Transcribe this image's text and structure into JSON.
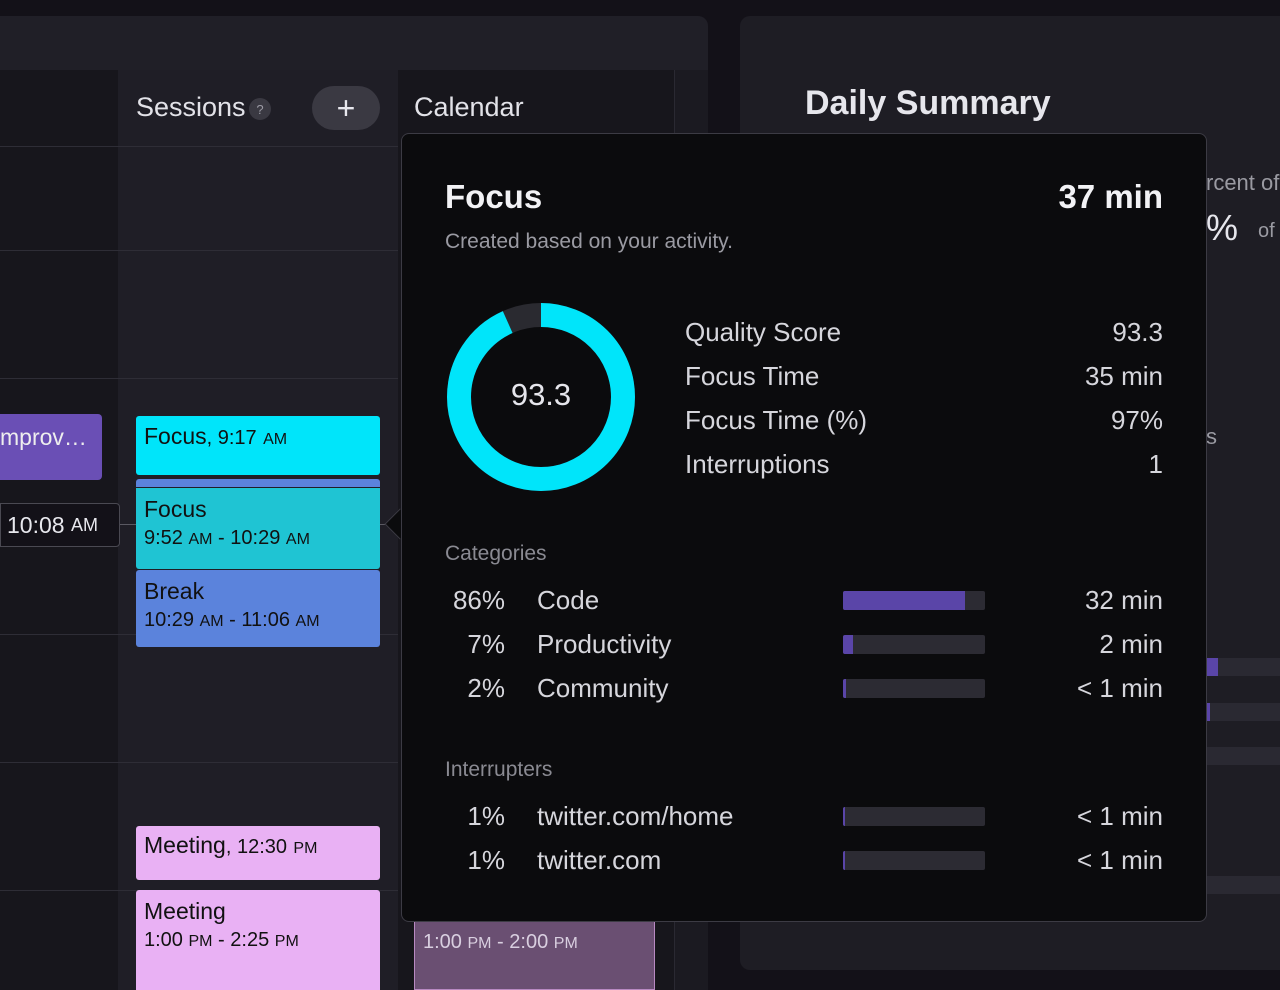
{
  "sessions_column": {
    "title": "Sessions",
    "help": "?",
    "add": "+"
  },
  "calendar_column": {
    "title": "Calendar"
  },
  "left_column": {
    "event_label": "mprov…",
    "current_time": "10:08",
    "current_time_period": "AM"
  },
  "session_blocks": [
    {
      "name": "Focus",
      "time": ", 9:17",
      "period": "AM",
      "color": "#00e5fa"
    },
    {
      "name": "Focus",
      "start": "9:52",
      "start_period": "AM",
      "end": "10:29",
      "end_period": "AM",
      "color": "#1fc4d3"
    },
    {
      "name": "Break",
      "start": "10:29",
      "start_period": "AM",
      "end": "11:06",
      "end_period": "AM",
      "color": "#5b83dc"
    },
    {
      "name": "Meeting",
      "time": ", 12:30",
      "period": "PM",
      "color": "#e9b1f4"
    },
    {
      "name": "Meeting",
      "start": "1:00",
      "start_period": "PM",
      "end": "2:25",
      "end_period": "PM",
      "color": "#e9b1f4"
    }
  ],
  "calendar_block": {
    "start": "1:00",
    "start_period": "PM",
    "end": "2:00",
    "end_period": "PM",
    "color": "#6a4f72"
  },
  "popover": {
    "title": "Focus",
    "duration": "37 min",
    "subtitle": "Created based on your activity.",
    "donut": {
      "value": 93.3,
      "label": "93.3",
      "ring_color": "#00e5fa",
      "track_color": "#2a2a30"
    },
    "stats": [
      {
        "label": "Quality Score",
        "value": "93.3"
      },
      {
        "label": "Focus Time",
        "value": "35 min"
      },
      {
        "label": "Focus Time (%)",
        "value": "97%"
      },
      {
        "label": "Interruptions",
        "value": "1"
      }
    ],
    "categories_label": "Categories",
    "categories": [
      {
        "pct": "86%",
        "name": "Code",
        "value": "32 min",
        "fill": 0.86
      },
      {
        "pct": "7%",
        "name": "Productivity",
        "value": "2 min",
        "fill": 0.07
      },
      {
        "pct": "2%",
        "name": "Community",
        "value": "< 1 min",
        "fill": 0.02
      }
    ],
    "interrupters_label": "Interrupters",
    "interrupters": [
      {
        "pct": "1%",
        "name": "twitter.com/home",
        "value": "< 1 min",
        "fill": 0.01
      },
      {
        "pct": "1%",
        "name": "twitter.com",
        "value": "< 1 min",
        "fill": 0.01
      }
    ],
    "bar_color": "#5a45a8"
  },
  "daily_summary": {
    "title": "Daily Summary",
    "partial_text_1": "rcent of",
    "partial_pct": "%",
    "partial_of": "of",
    "partial_s": "s"
  }
}
